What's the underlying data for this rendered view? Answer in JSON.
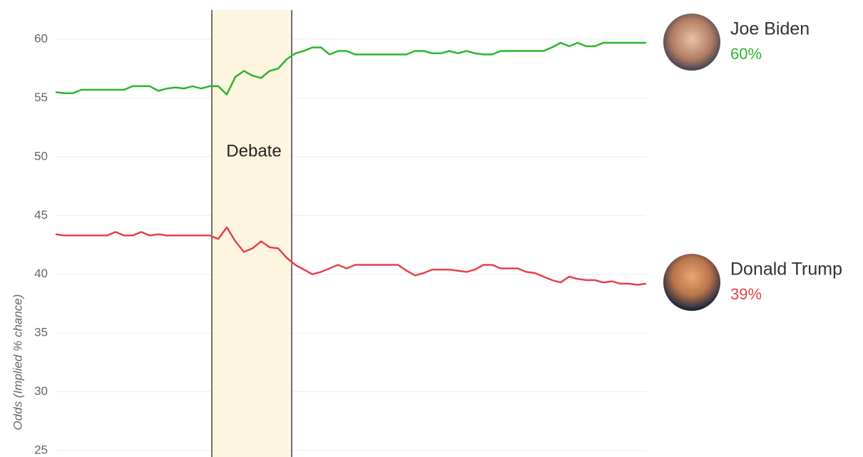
{
  "chart_data": {
    "type": "line",
    "y_label": "Odds (Implied % chance)",
    "annotation": "Debate",
    "ylim": [
      24.5,
      62.5
    ],
    "yticks": [
      25,
      30,
      35,
      40,
      45,
      50,
      55,
      60
    ],
    "grid": true,
    "series": [
      {
        "name": "Joe Biden",
        "color": "#2db52d",
        "latest_label": "60%",
        "values": [
          55.5,
          55.4,
          55.4,
          55.7,
          55.7,
          55.7,
          55.7,
          55.7,
          55.7,
          56,
          56,
          56,
          55.6,
          55.8,
          55.9,
          55.8,
          56,
          55.8,
          56,
          56,
          55.3,
          56.8,
          57.3,
          56.9,
          56.7,
          57.3,
          57.5,
          58.3,
          58.8,
          59,
          59.3,
          59.3,
          58.7,
          59,
          59,
          58.7,
          58.7,
          58.7,
          58.7,
          58.7,
          58.7,
          58.7,
          59,
          59,
          58.8,
          58.8,
          59,
          58.8,
          59,
          58.8,
          58.7,
          58.7,
          59,
          59,
          59,
          59,
          59,
          59,
          59.3,
          59.7,
          59.4,
          59.7,
          59.4,
          59.4,
          59.7,
          59.7,
          59.7,
          59.7,
          59.7,
          59.7
        ]
      },
      {
        "name": "Donald Trump",
        "color": "#e8404a",
        "latest_label": "39%",
        "values": [
          43.4,
          43.3,
          43.3,
          43.3,
          43.3,
          43.3,
          43.3,
          43.6,
          43.3,
          43.3,
          43.6,
          43.3,
          43.4,
          43.3,
          43.3,
          43.3,
          43.3,
          43.3,
          43.3,
          43,
          44,
          42.8,
          41.9,
          42.2,
          42.8,
          42.3,
          42.2,
          41.4,
          40.8,
          40.4,
          40,
          40.2,
          40.5,
          40.8,
          40.5,
          40.8,
          40.8,
          40.8,
          40.8,
          40.8,
          40.8,
          40.3,
          39.9,
          40.1,
          40.4,
          40.4,
          40.4,
          40.3,
          40.2,
          40.4,
          40.8,
          40.8,
          40.5,
          40.5,
          40.5,
          40.2,
          40.1,
          39.8,
          39.5,
          39.3,
          39.8,
          39.6,
          39.5,
          39.5,
          39.3,
          39.4,
          39.2,
          39.2,
          39.1,
          39.2
        ]
      }
    ]
  }
}
